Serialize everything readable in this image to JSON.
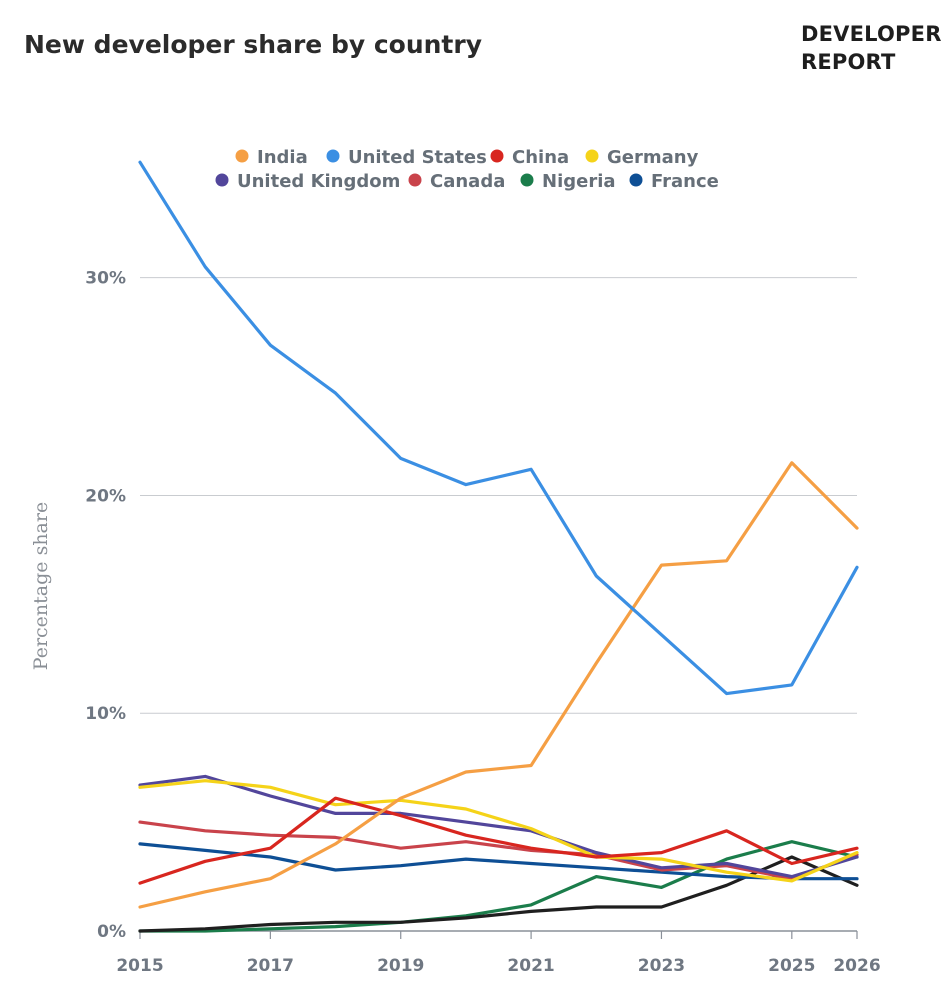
{
  "header": {
    "title": "New developer share by country",
    "brand_line1": "DEVELOPER",
    "brand_line2": "REPORT"
  },
  "chart_data": {
    "type": "line",
    "title": "New developer share by country",
    "ylabel": "Percentage share",
    "xlabel": "",
    "x": [
      2015,
      2016,
      2017,
      2018,
      2019,
      2020,
      2021,
      2022,
      2023,
      2024,
      2025,
      2026
    ],
    "x_tick_labels": [
      "2015",
      "2017",
      "2019",
      "2021",
      "2023",
      "2025",
      "2026"
    ],
    "x_tick_values": [
      2015,
      2017,
      2019,
      2021,
      2023,
      2025,
      2026
    ],
    "y_tick_labels": [
      "0%",
      "10%",
      "20%",
      "30%"
    ],
    "y_tick_values": [
      0,
      10,
      20,
      30
    ],
    "xlim": [
      2015,
      2026
    ],
    "ylim": [
      0,
      36
    ],
    "grid": true,
    "legend_position": "top-center",
    "series": [
      {
        "name": "India",
        "color": "#f59f44",
        "values": [
          1.1,
          1.8,
          2.4,
          4.0,
          6.1,
          7.3,
          7.6,
          12.3,
          16.8,
          17.0,
          21.5,
          18.5
        ]
      },
      {
        "name": "United States",
        "color": "#3b8fe3",
        "values": [
          35.3,
          30.5,
          26.9,
          24.7,
          21.7,
          20.5,
          21.2,
          16.3,
          13.6,
          10.9,
          11.3,
          16.7
        ]
      },
      {
        "name": "China",
        "color": "#d8261f",
        "values": [
          2.2,
          3.2,
          3.8,
          6.1,
          5.3,
          4.4,
          3.8,
          3.4,
          3.6,
          4.6,
          3.1,
          3.8
        ]
      },
      {
        "name": "Germany",
        "color": "#f5d319",
        "values": [
          6.6,
          6.9,
          6.6,
          5.8,
          6.0,
          5.6,
          4.7,
          3.4,
          3.3,
          2.7,
          2.3,
          3.6
        ]
      },
      {
        "name": "United Kingdom",
        "color": "#52469b",
        "values": [
          6.7,
          7.1,
          6.2,
          5.4,
          5.4,
          5.0,
          4.6,
          3.6,
          2.9,
          3.1,
          2.5,
          3.4
        ]
      },
      {
        "name": "Canada",
        "color": "#c9434b",
        "values": [
          5.0,
          4.6,
          4.4,
          4.3,
          3.8,
          4.1,
          3.7,
          3.5,
          2.8,
          3.0,
          2.4,
          3.5
        ]
      },
      {
        "name": "Nigeria",
        "color": "#1b7d4b",
        "values": [
          0.0,
          0.0,
          0.1,
          0.2,
          0.4,
          0.7,
          1.2,
          2.5,
          2.0,
          3.3,
          4.1,
          3.4
        ]
      },
      {
        "name": "France",
        "color": "#0e4f95",
        "values": [
          4.0,
          3.7,
          3.4,
          2.8,
          3.0,
          3.3,
          3.1,
          2.9,
          2.7,
          2.5,
          2.4,
          2.4
        ]
      },
      {
        "name": "",
        "color": "#1f1f1f",
        "values": [
          0.0,
          0.1,
          0.3,
          0.4,
          0.4,
          0.6,
          0.9,
          1.1,
          1.1,
          2.1,
          3.4,
          2.1
        ]
      }
    ]
  }
}
